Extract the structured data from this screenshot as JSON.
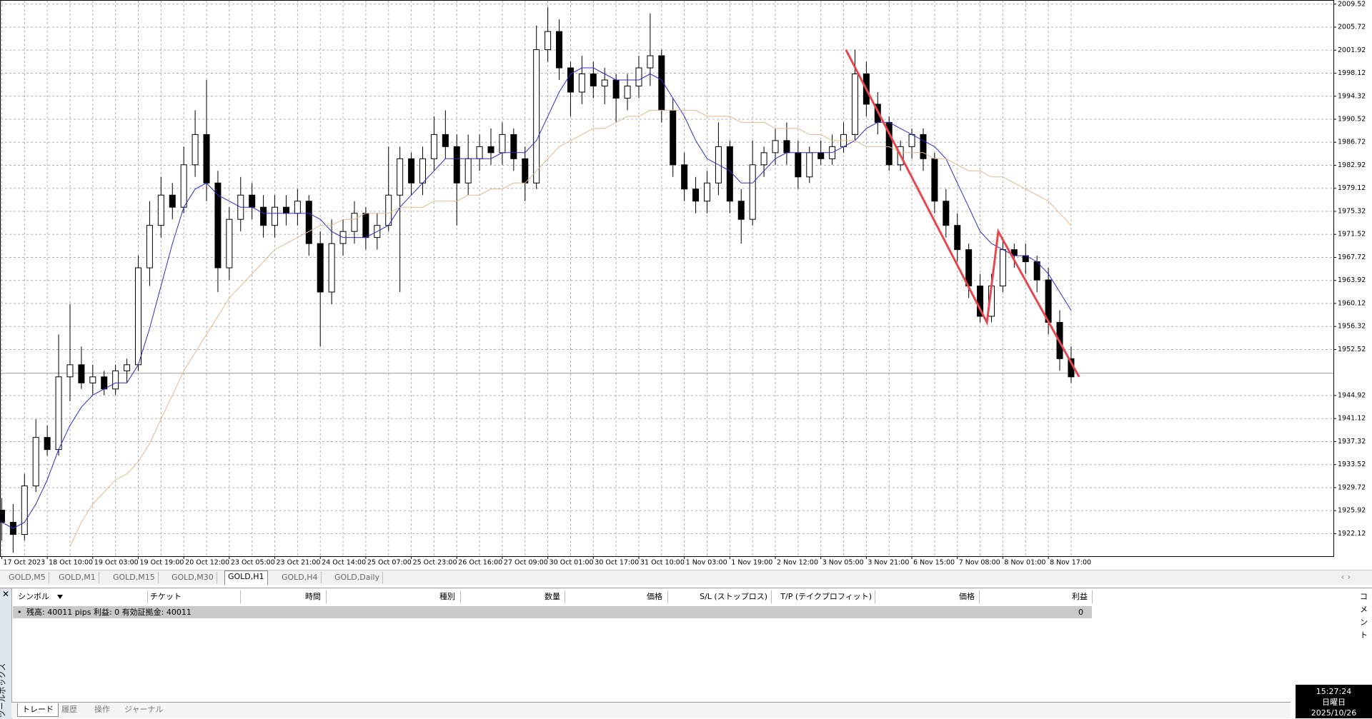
{
  "chart_data": {
    "type": "candlestick",
    "ylim": [
      1918.4,
      2010.2
    ],
    "yticks": [
      2009.52,
      2005.72,
      2001.92,
      1998.12,
      1994.32,
      1990.52,
      1986.72,
      1982.92,
      1979.12,
      1975.32,
      1971.52,
      1967.72,
      1963.92,
      1960.12,
      1956.32,
      1952.52,
      1944.92,
      1941.12,
      1937.32,
      1933.52,
      1929.72,
      1925.92,
      1922.12
    ],
    "grid": true,
    "up_color": "#ffffff",
    "down_color": "#000000",
    "categories": [
      "17 Oct 2023",
      null,
      null,
      null,
      "18 Oct 10:00",
      null,
      null,
      null,
      "19 Oct 03:00",
      null,
      null,
      null,
      "19 Oct 19:00",
      null,
      null,
      null,
      "20 Oct 12:00",
      null,
      null,
      null,
      "23 Oct 05:00",
      null,
      null,
      null,
      "23 Oct 21:00",
      null,
      null,
      null,
      "24 Oct 14:00",
      null,
      null,
      null,
      "25 Oct 07:00",
      null,
      null,
      null,
      "25 Oct 23:00",
      null,
      null,
      null,
      "26 Oct 16:00",
      null,
      null,
      null,
      "27 Oct 09:00",
      null,
      null,
      null,
      "30 Oct 01:00",
      null,
      null,
      null,
      "30 Oct 17:00",
      null,
      null,
      null,
      "31 Oct 10:00",
      null,
      null,
      null,
      "1 Nov 03:00",
      null,
      null,
      null,
      "1 Nov 19:00",
      null,
      null,
      null,
      "2 Nov 12:00",
      null,
      null,
      null,
      "3 Nov 05:00",
      null,
      null,
      null,
      "3 Nov 21:00",
      null,
      null,
      null,
      "6 Nov 15:00",
      null,
      null,
      null,
      "7 Nov 08:00",
      null,
      null,
      null,
      "8 Nov 01:00",
      null,
      null,
      null,
      "8 Nov 17:00",
      null,
      null
    ],
    "ohlc": [
      [
        1926,
        1928,
        1921,
        1924
      ],
      [
        1924,
        1927,
        1919,
        1922
      ],
      [
        1922,
        1932,
        1921,
        1930
      ],
      [
        1930,
        1941,
        1929,
        1938
      ],
      [
        1938,
        1940,
        1935,
        1936
      ],
      [
        1936,
        1955,
        1935,
        1948
      ],
      [
        1948,
        1960,
        1944,
        1950
      ],
      [
        1950,
        1953,
        1946,
        1947
      ],
      [
        1947,
        1950,
        1945,
        1948
      ],
      [
        1948,
        1949,
        1945,
        1946
      ],
      [
        1946,
        1950,
        1945,
        1949
      ],
      [
        1949,
        1951,
        1947,
        1950
      ],
      [
        1950,
        1968,
        1949,
        1966
      ],
      [
        1966,
        1977,
        1963,
        1973
      ],
      [
        1973,
        1981,
        1971,
        1978
      ],
      [
        1978,
        1980,
        1974,
        1976
      ],
      [
        1976,
        1986,
        1975,
        1983
      ],
      [
        1983,
        1992,
        1981,
        1988
      ],
      [
        1988,
        1997,
        1977,
        1980
      ],
      [
        1980,
        1982,
        1962,
        1966
      ],
      [
        1966,
        1976,
        1964,
        1974
      ],
      [
        1974,
        1981,
        1972,
        1978
      ],
      [
        1978,
        1980,
        1974,
        1976
      ],
      [
        1976,
        1978,
        1971,
        1973
      ],
      [
        1973,
        1978,
        1971,
        1976
      ],
      [
        1976,
        1978,
        1973,
        1975
      ],
      [
        1975,
        1979,
        1973,
        1977
      ],
      [
        1977,
        1978,
        1968,
        1970
      ],
      [
        1970,
        1972,
        1953,
        1962
      ],
      [
        1962,
        1974,
        1960,
        1970
      ],
      [
        1970,
        1974,
        1968,
        1972
      ],
      [
        1972,
        1977,
        1970,
        1975
      ],
      [
        1975,
        1976,
        1969,
        1971
      ],
      [
        1971,
        1975,
        1969,
        1973
      ],
      [
        1973,
        1986,
        1972,
        1978
      ],
      [
        1978,
        1986,
        1962,
        1984
      ],
      [
        1984,
        1985,
        1978,
        1980
      ],
      [
        1980,
        1986,
        1978,
        1984
      ],
      [
        1984,
        1991,
        1982,
        1988
      ],
      [
        1988,
        1992,
        1984,
        1986
      ],
      [
        1986,
        1988,
        1973,
        1980
      ],
      [
        1980,
        1988,
        1978,
        1984
      ],
      [
        1984,
        1988,
        1982,
        1986
      ],
      [
        1986,
        1989,
        1983,
        1985
      ],
      [
        1985,
        1990,
        1983,
        1988
      ],
      [
        1988,
        1989,
        1982,
        1984
      ],
      [
        1984,
        1986,
        1977,
        1980
      ],
      [
        1980,
        2006,
        1979,
        2002
      ],
      [
        2002,
        2009,
        2000,
        2005
      ],
      [
        2005,
        2007,
        1997,
        1999
      ],
      [
        1999,
        2000,
        1991,
        1995
      ],
      [
        1995,
        2001,
        1993,
        1998
      ],
      [
        1998,
        2000,
        1994,
        1996
      ],
      [
        1996,
        1999,
        1993,
        1997
      ],
      [
        1997,
        1998,
        1990,
        1994
      ],
      [
        1994,
        1998,
        1992,
        1996
      ],
      [
        1996,
        2001,
        1994,
        1999
      ],
      [
        1999,
        2008,
        1996,
        2001
      ],
      [
        2001,
        2002,
        1990,
        1992
      ],
      [
        1992,
        1994,
        1981,
        1983
      ],
      [
        1983,
        1985,
        1977,
        1979
      ],
      [
        1979,
        1981,
        1975,
        1977
      ],
      [
        1977,
        1982,
        1975,
        1980
      ],
      [
        1980,
        1990,
        1978,
        1986
      ],
      [
        1986,
        1987,
        1975,
        1977
      ],
      [
        1977,
        1979,
        1970,
        1974
      ],
      [
        1974,
        1987,
        1973,
        1983
      ],
      [
        1983,
        1986,
        1981,
        1985
      ],
      [
        1985,
        1989,
        1983,
        1987
      ],
      [
        1987,
        1990,
        1983,
        1985
      ],
      [
        1985,
        1987,
        1979,
        1981
      ],
      [
        1981,
        1986,
        1980,
        1985
      ],
      [
        1985,
        1987,
        1983,
        1984
      ],
      [
        1984,
        1988,
        1983,
        1986
      ],
      [
        1986,
        1990,
        1985,
        1988
      ],
      [
        1988,
        2002,
        1987,
        1998
      ],
      [
        1998,
        2000,
        1991,
        1993
      ],
      [
        1993,
        1995,
        1988,
        1990
      ],
      [
        1990,
        1991,
        1982,
        1983
      ],
      [
        1983,
        1987,
        1982,
        1986
      ],
      [
        1986,
        1989,
        1984,
        1988
      ],
      [
        1988,
        1989,
        1982,
        1984
      ],
      [
        1984,
        1985,
        1975,
        1977
      ],
      [
        1977,
        1979,
        1971,
        1973
      ],
      [
        1973,
        1975,
        1967,
        1969
      ],
      [
        1969,
        1970,
        1961,
        1963
      ],
      [
        1963,
        1965,
        1957,
        1958
      ],
      [
        1958,
        1965,
        1957,
        1963
      ],
      [
        1963,
        1971,
        1962,
        1969
      ],
      [
        1969,
        1970,
        1966,
        1968
      ],
      [
        1968,
        1970,
        1965,
        1967
      ],
      [
        1967,
        1968,
        1962,
        1964
      ],
      [
        1964,
        1966,
        1955,
        1957
      ],
      [
        1957,
        1959,
        1949,
        1951
      ],
      [
        1951,
        1953,
        1947,
        1948
      ]
    ],
    "series": [
      {
        "color": "#2b2bd6",
        "values": [
          1924,
          1923,
          1924,
          1927,
          1931,
          1936,
          1940,
          1943,
          1945,
          1946,
          1947,
          1947,
          1950,
          1956,
          1963,
          1970,
          1976,
          1979,
          1980,
          1978,
          1977,
          1976,
          1976,
          1975,
          1975,
          1975,
          1975,
          1975,
          1974,
          1972,
          1971,
          1971,
          1971,
          1972,
          1973,
          1976,
          1978,
          1980,
          1982,
          1984,
          1984,
          1984,
          1984,
          1984,
          1985,
          1985,
          1985,
          1987,
          1991,
          1995,
          1998,
          1999,
          1999,
          1998,
          1997,
          1997,
          1997,
          1998,
          1997,
          1994,
          1991,
          1987,
          1984,
          1983,
          1982,
          1980,
          1980,
          1982,
          1984,
          1985,
          1985,
          1985,
          1985,
          1985,
          1986,
          1987,
          1989,
          1990,
          1990,
          1989,
          1988,
          1987,
          1986,
          1984,
          1980,
          1976,
          1972,
          1970,
          1969,
          1968,
          1968,
          1967,
          1965,
          1962,
          1959
        ]
      },
      {
        "color": "#e3b98e",
        "values": [
          null,
          null,
          null,
          null,
          null,
          null,
          1920,
          1924,
          1927,
          1929,
          1931,
          1932,
          1934,
          1937,
          1941,
          1945,
          1949,
          1952,
          1955,
          1958,
          1961,
          1963,
          1965,
          1967,
          1969,
          1970,
          1971,
          1972,
          1973,
          1973,
          1974,
          1974,
          1975,
          1975,
          1975,
          1976,
          1976,
          1976,
          1977,
          1977,
          1977,
          1978,
          1978,
          1979,
          1979,
          1980,
          1980,
          1982,
          1984,
          1986,
          1987,
          1988,
          1989,
          1989,
          1990,
          1991,
          1991,
          1992,
          1992,
          1992,
          1992,
          1992,
          1991,
          1991,
          1991,
          1990,
          1990,
          1990,
          1989,
          1989,
          1989,
          1988,
          1988,
          1987,
          1987,
          1987,
          1986,
          1986,
          1986,
          1985,
          1985,
          1985,
          1984,
          1984,
          1983,
          1982,
          1982,
          1981,
          1981,
          1980,
          1979,
          1978,
          1977,
          1975,
          1973
        ]
      }
    ],
    "trendline": {
      "color": "#e8464f",
      "x": [
        74.2,
        86.6,
        87.6,
        94.7
      ],
      "values": [
        2002,
        1957,
        1972,
        1948
      ]
    },
    "bid": 1948.6
  },
  "tabs": [
    "GOLD,M5",
    "GOLD,M1",
    "GOLD,M15",
    "GOLD,M30",
    "GOLD,H1",
    "GOLD,H4",
    "GOLD,Daily"
  ],
  "terminal": {
    "columns": [
      "シンボル",
      "チケット",
      "時間",
      "種別",
      "数量",
      "価格",
      "S/L (ストップロス)",
      "T/P (テイクプロフィット)",
      "価格",
      "利益",
      "コメント"
    ],
    "balance": "残高: 40011 pips  利益: 0  有効証拠金: 40011",
    "profit": "0",
    "side_title": "ツールボックス",
    "tabs": [
      "トレード",
      "履歴",
      "操作",
      "ジャーナル"
    ]
  },
  "clock": {
    "time": "15:27:24",
    "weekday": "日曜日",
    "date": "2025/10/26"
  }
}
